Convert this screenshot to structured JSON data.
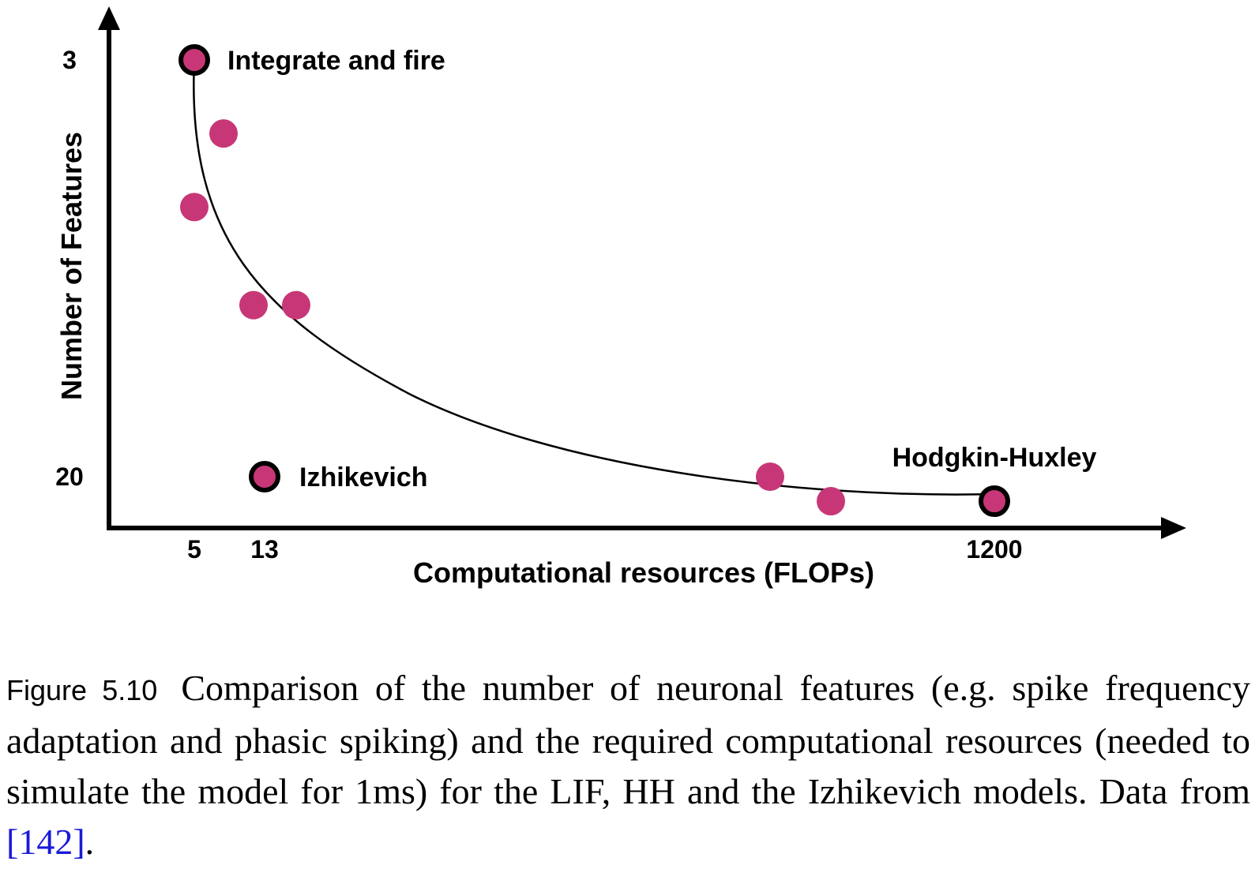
{
  "chart_data": {
    "type": "scatter",
    "xlabel": "Computational resources (FLOPs)",
    "ylabel": "Number of Features",
    "x_ticks": [
      {
        "value": 5,
        "label": "5"
      },
      {
        "value": 13,
        "label": "13"
      },
      {
        "value": 1200,
        "label": "1200"
      }
    ],
    "y_ticks": [
      {
        "value": 3,
        "label": "3"
      },
      {
        "value": 20,
        "label": "20"
      }
    ],
    "points": [
      {
        "x": 5,
        "y": 3,
        "label": "Integrate and fire",
        "highlight": true
      },
      {
        "x": 8,
        "y": 6
      },
      {
        "x": 5,
        "y": 9
      },
      {
        "x": 12,
        "y": 13
      },
      {
        "x": 17,
        "y": 13
      },
      {
        "x": 13,
        "y": 20,
        "label": "Izhikevich",
        "highlight": true
      },
      {
        "x": 800,
        "y": 20
      },
      {
        "x": 1000,
        "y": 21
      },
      {
        "x": 1200,
        "y": 21,
        "label": "Hodgkin-Huxley",
        "highlight": true
      }
    ],
    "point_color": "#c73777",
    "outline_color": "#000000",
    "trend_curve": true
  },
  "caption": {
    "label": "Figure 5.10",
    "text_before": "Comparison of the number of neuronal features (e.g. spike frequency adaptation and phasic spiking) and the required computational resources (needed to simulate the model for 1ms) for the LIF, HH and the Izhikevich models. Data from ",
    "citation": "[142]",
    "text_after": "."
  }
}
